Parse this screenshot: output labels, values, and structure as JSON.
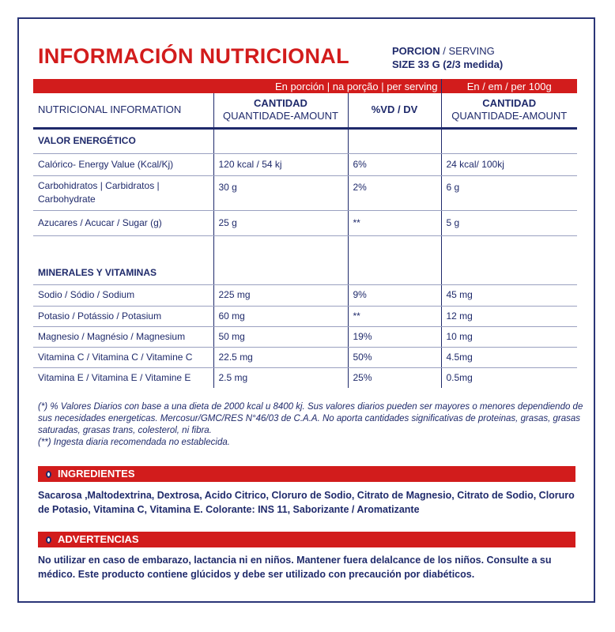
{
  "title": "INFORMACIÓN NUTRICIONAL",
  "serving": {
    "label_bold": "PORCION",
    "label_rest": " / SERVING",
    "size": "SIZE 33 G (2/3 medida)"
  },
  "table": {
    "band": {
      "per_serving": "En porción | na porção | per serving",
      "per_100": "En / em / per 100g"
    },
    "headers": {
      "col1": "NUTRICIONAL INFORMATION",
      "col2_a": "CANTIDAD",
      "col2_b": "QUANTIDADE-AMOUNT",
      "col3": "%VD / DV",
      "col4_a": "CANTIDAD",
      "col4_b": "QUANTIDADE-AMOUNT"
    },
    "section1": "VALOR ENERGÉTICO",
    "rows1": [
      {
        "name": "Calórico- Energy Value (Kcal/Kj)",
        "amount": "120 kcal / 54 kj",
        "dv": "6%",
        "per100": "24 kcal/ 100kj"
      },
      {
        "name": "Carbohidratos | Carbidratos | Carbohydrate",
        "amount": "30 g",
        "dv": "2%",
        "per100": "6 g"
      },
      {
        "name": "Azucares / Acucar / Sugar (g)",
        "amount": "25 g",
        "dv": "**",
        "per100": "5 g"
      }
    ],
    "section2": "MINERALES Y VITAMINAS",
    "rows2": [
      {
        "name": "Sodio / Sódio / Sodium",
        "amount": "225 mg",
        "dv": "9%",
        "per100": "45 mg"
      },
      {
        "name": "Potasio / Potássio /  Potasium",
        "amount": "60 mg",
        "dv": "**",
        "per100": "12 mg"
      },
      {
        "name": "Magnesio / Magnésio / Magnesium",
        "amount": "50 mg",
        "dv": "19%",
        "per100": "10 mg"
      },
      {
        "name": "Vitamina C / Vitamina C / Vitamine C",
        "amount": "22.5 mg",
        "dv": "50%",
        "per100": "4.5mg"
      },
      {
        "name": "Vitamina E / Vitamina E / Vitamine E",
        "amount": "2.5 mg",
        "dv": "25%",
        "per100": "0.5mg"
      }
    ]
  },
  "notes": [
    "(*) % Valores Diarios con base a una dieta de 2000 kcal u 8400 kj. Sus valores diarios pueden ser mayores o menores dependiendo de sus necesidades energeticas. Mercosur/GMC/RES N°46/03 de C.A.A. No aporta cantidades significativas de proteinas, grasas, grasas saturadas, grasas trans, colesterol, ni fibra.",
    "(**) Ingesta diaria recomendada no establecida."
  ],
  "ingredients": {
    "title": "INGREDIENTES",
    "text": "Sacarosa ,Maltodextrina, Dextrosa, Acido Citrico, Cloruro de Sodio, Citrato de Magnesio, Citrato de Sodio, Cloruro de Potasio, Vitamina C, Vitamina E. Colorante: INS 11, Saborizante / Aromatizante"
  },
  "warnings": {
    "title": "ADVERTENCIAS",
    "text": "No utilizar en caso de embarazo, lactancia ni en niños. Mantener fuera delalcance de los niños. Consulte a su médico. Este producto contiene glúcidos y debe ser utilizado con precaución por diabéticos."
  },
  "colors": {
    "red": "#d21c1c",
    "navy": "#1f2a6b"
  }
}
